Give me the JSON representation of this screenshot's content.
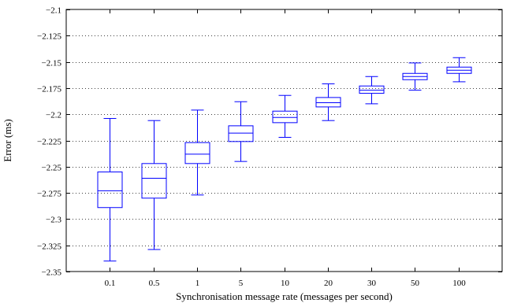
{
  "chart_data": {
    "type": "box",
    "xlabel": "Synchronisation message rate (messages per second)",
    "ylabel": "Error (ms)",
    "ylim": [
      -2.35,
      -2.1
    ],
    "yticks": [
      -2.1,
      -2.125,
      -2.15,
      -2.175,
      -2.2,
      -2.225,
      -2.25,
      -2.275,
      -2.3,
      -2.325,
      -2.35
    ],
    "ytick_labels": [
      "−2.1",
      "−2.125",
      "−2.15",
      "−2.175",
      "−2.2",
      "−2.225",
      "−2.25",
      "−2.275",
      "−2.3",
      "−2.325",
      "−2.35"
    ],
    "categories": [
      "0.1",
      "0.5",
      "1",
      "5",
      "10",
      "20",
      "30",
      "50",
      "100"
    ],
    "grid": "horizontal-dotted",
    "color": "#0000ff",
    "boxes": [
      {
        "whisker_low": -2.34,
        "q1": -2.289,
        "median": -2.273,
        "q3": -2.255,
        "whisker_high": -2.204
      },
      {
        "whisker_low": -2.329,
        "q1": -2.28,
        "median": -2.261,
        "q3": -2.247,
        "whisker_high": -2.206
      },
      {
        "whisker_low": -2.277,
        "q1": -2.247,
        "median": -2.238,
        "q3": -2.227,
        "whisker_high": -2.196
      },
      {
        "whisker_low": -2.245,
        "q1": -2.226,
        "median": -2.218,
        "q3": -2.211,
        "whisker_high": -2.188
      },
      {
        "whisker_low": -2.222,
        "q1": -2.208,
        "median": -2.203,
        "q3": -2.197,
        "whisker_high": -2.182
      },
      {
        "whisker_low": -2.206,
        "q1": -2.193,
        "median": -2.189,
        "q3": -2.184,
        "whisker_high": -2.171
      },
      {
        "whisker_low": -2.19,
        "q1": -2.18,
        "median": -2.177,
        "q3": -2.173,
        "whisker_high": -2.164
      },
      {
        "whisker_low": -2.177,
        "q1": -2.167,
        "median": -2.164,
        "q3": -2.161,
        "whisker_high": -2.151
      },
      {
        "whisker_low": -2.169,
        "q1": -2.161,
        "median": -2.158,
        "q3": -2.155,
        "whisker_high": -2.146
      }
    ]
  }
}
